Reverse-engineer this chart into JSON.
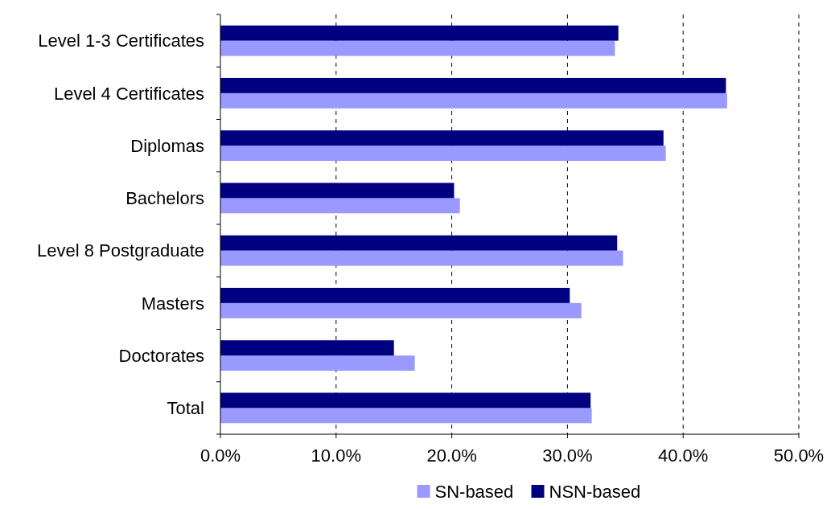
{
  "chart_data": {
    "type": "bar",
    "orientation": "horizontal",
    "categories": [
      "Level 1-3 Certificates",
      "Level 4 Certificates",
      "Diplomas",
      "Bachelors",
      "Level 8 Postgraduate",
      "Masters",
      "Doctorates",
      "Total"
    ],
    "series": [
      {
        "name": "SN-based",
        "color": "#9999ff",
        "values": [
          34.1,
          43.8,
          38.5,
          20.7,
          34.8,
          31.2,
          16.8,
          32.1
        ]
      },
      {
        "name": "NSN-based",
        "color": "#000080",
        "values": [
          34.4,
          43.7,
          38.3,
          20.2,
          34.3,
          30.2,
          15.0,
          32.0
        ]
      }
    ],
    "xlim": [
      0,
      50
    ],
    "xticks": [
      {
        "value": 0,
        "label": "0.0%"
      },
      {
        "value": 10,
        "label": "10.0%"
      },
      {
        "value": 20,
        "label": "20.0%"
      },
      {
        "value": 30,
        "label": "30.0%"
      },
      {
        "value": 40,
        "label": "40.0%"
      },
      {
        "value": 50,
        "label": "50.0%"
      }
    ],
    "grid": "x",
    "legend": "bottom"
  }
}
